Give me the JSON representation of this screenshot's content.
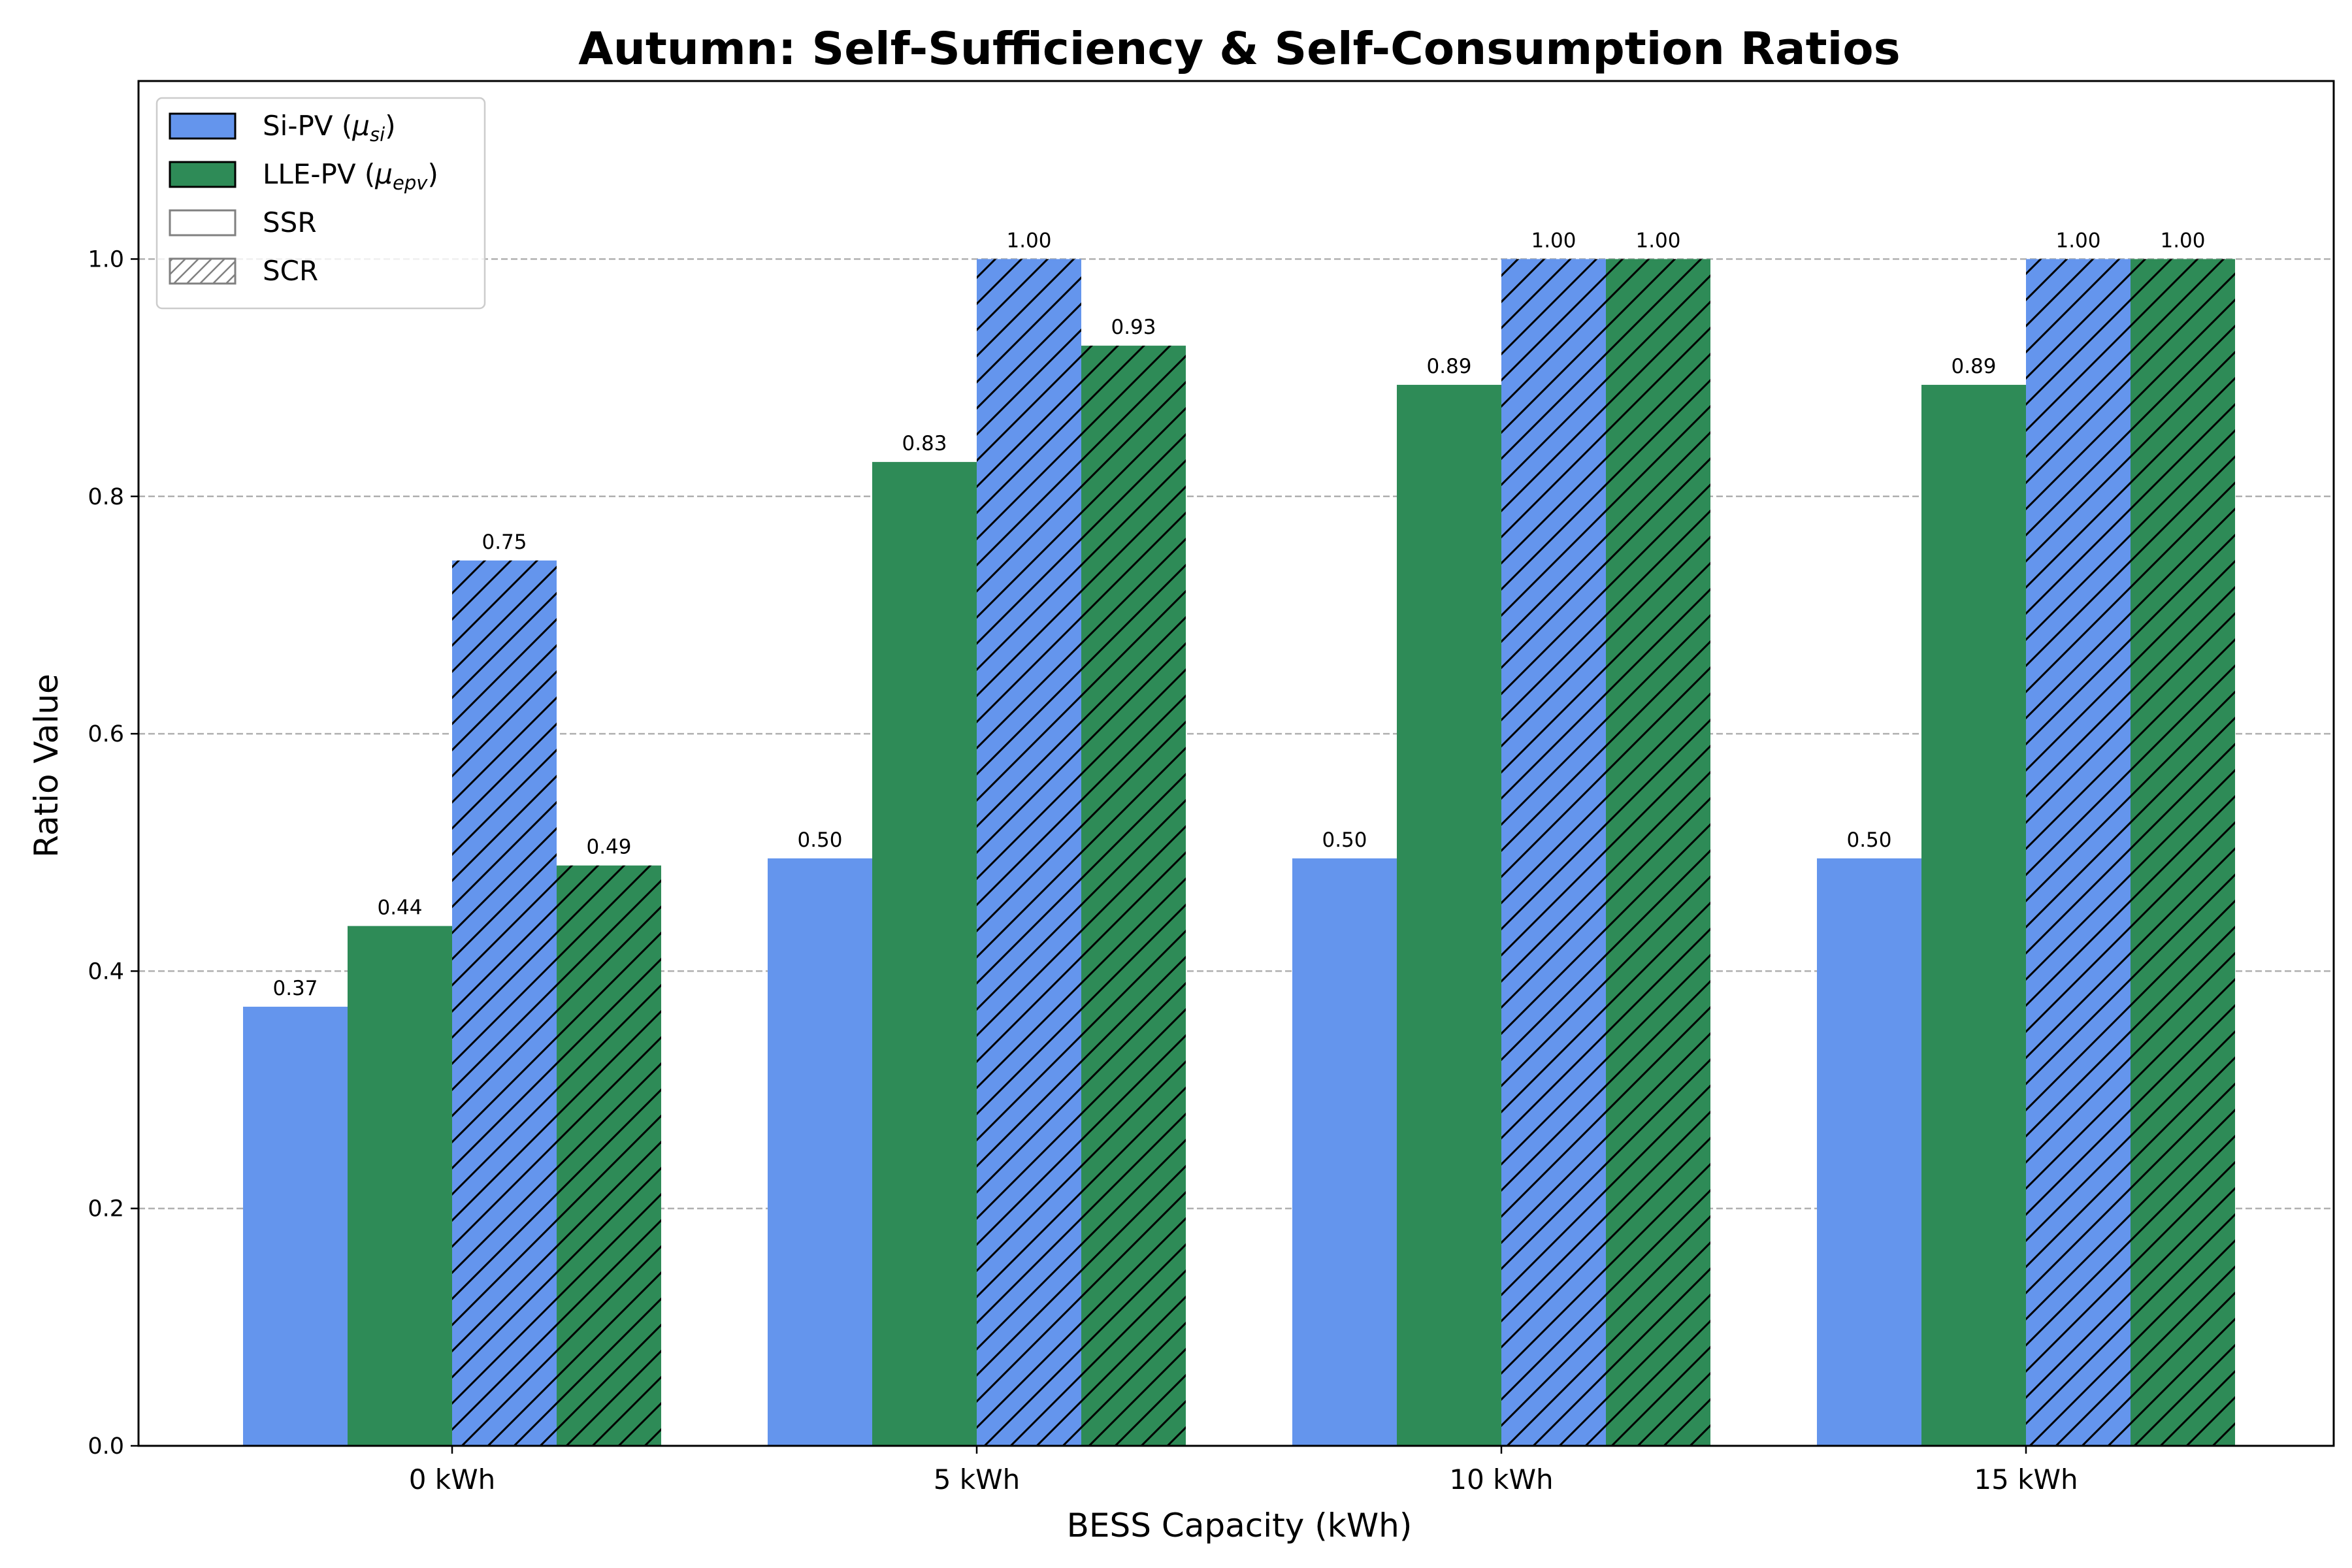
{
  "chart_data": {
    "type": "bar",
    "title": "Autumn: Self-Sufficiency & Self-Consumption Ratios",
    "xlabel": "BESS Capacity (kWh)",
    "ylabel": "Ratio Value",
    "categories": [
      "0 kWh",
      "5 kWh",
      "10 kWh",
      "15 kWh"
    ],
    "ylim": [
      0,
      1.15
    ],
    "yticks": [
      "0.0",
      "0.2",
      "0.4",
      "0.6",
      "0.8",
      "1.0"
    ],
    "grid": "y, dashed",
    "legend_position": "top-left",
    "series": [
      {
        "group": "Si-PV",
        "metric": "SSR",
        "values": [
          0.37,
          0.495,
          0.495,
          0.495
        ],
        "labels": [
          "0.37",
          "0.50",
          "0.50",
          "0.50"
        ],
        "color": "#6495ED",
        "hatch": false
      },
      {
        "group": "LLE-PV",
        "metric": "SSR",
        "values": [
          0.438,
          0.829,
          0.894,
          0.894
        ],
        "labels": [
          "0.44",
          "0.83",
          "0.89",
          "0.89"
        ],
        "color": "#2E8B57",
        "hatch": false
      },
      {
        "group": "Si-PV",
        "metric": "SCR",
        "values": [
          0.746,
          1.0,
          1.0,
          1.0
        ],
        "labels": [
          "0.75",
          "1.00",
          "1.00",
          "1.00"
        ],
        "color": "#6495ED",
        "hatch": true
      },
      {
        "group": "LLE-PV",
        "metric": "SCR",
        "values": [
          0.489,
          0.927,
          1.0,
          1.0
        ],
        "labels": [
          "0.49",
          "0.93",
          "1.00",
          "1.00"
        ],
        "color": "#2E8B57",
        "hatch": true
      }
    ],
    "legend": [
      {
        "label": "Si-PV (",
        "math_base": "μ",
        "math_sub": "si",
        "suffix": ")",
        "color": "#6495ED",
        "hatch": false,
        "edge": "#000000"
      },
      {
        "label": "LLE-PV (",
        "math_base": "μ",
        "math_sub": "epv",
        "suffix": ")",
        "color": "#2E8B57",
        "hatch": false,
        "edge": "#000000"
      },
      {
        "label": "SSR",
        "color": "#ffffff",
        "hatch": false,
        "edge": "#808080"
      },
      {
        "label": "SCR",
        "color": "#ffffff",
        "hatch": true,
        "edge": "#808080"
      }
    ]
  }
}
